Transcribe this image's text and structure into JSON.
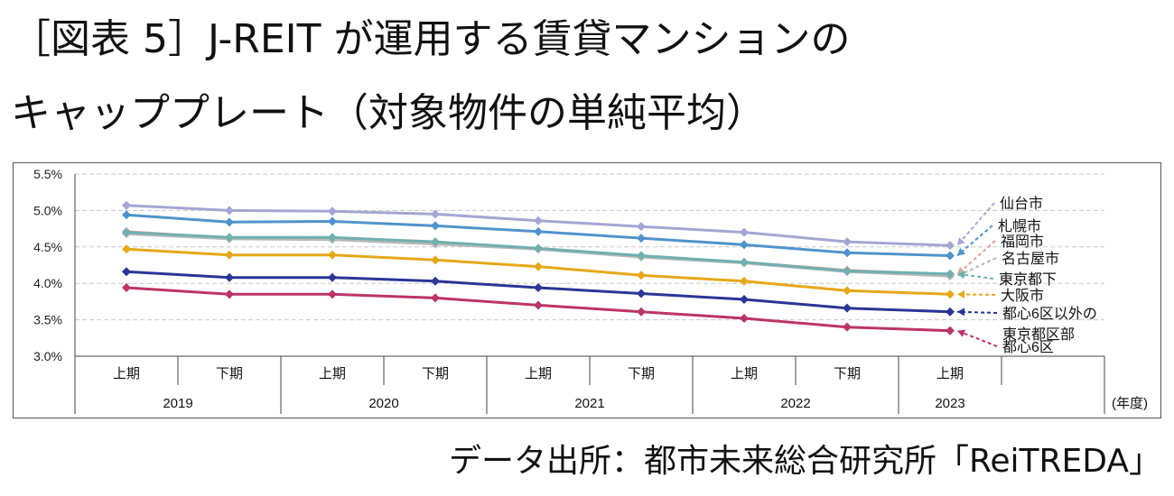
{
  "header": {
    "title_line1": "［図表 5］J-REIT が運用する賃貸マンションの",
    "title_line2": "キャッププレート（対象物件の単純平均）"
  },
  "footer": {
    "source": "データ出所：都市未来総合研究所「ReiTREDA」"
  },
  "chart_data": {
    "type": "line",
    "ylim": [
      3.0,
      5.5
    ],
    "yticks": [
      "3.0%",
      "3.5%",
      "4.0%",
      "4.5%",
      "5.0%",
      "5.5%"
    ],
    "grid": true,
    "periods": [
      "上期",
      "下期",
      "上期",
      "下期",
      "上期",
      "下期",
      "上期",
      "下期",
      "上期"
    ],
    "years": [
      "2019",
      "2020",
      "2021",
      "2022",
      "2023"
    ],
    "x_unit": "(年度)",
    "series": [
      {
        "name": "仙台市",
        "color": "#a5a5d4",
        "values": [
          5.07,
          5.0,
          4.99,
          4.95,
          4.86,
          4.78,
          4.7,
          4.57,
          4.52
        ]
      },
      {
        "name": "札幌市",
        "color": "#4f93cc",
        "values": [
          4.94,
          4.84,
          4.85,
          4.79,
          4.71,
          4.62,
          4.53,
          4.42,
          4.38
        ]
      },
      {
        "name": "福岡市",
        "color": "#e0a09c",
        "values": [
          4.71,
          4.62,
          4.62,
          4.56,
          4.47,
          4.37,
          4.29,
          4.18,
          4.12
        ]
      },
      {
        "name": "名古屋市",
        "color": "#b8b8b8",
        "values": [
          4.68,
          4.61,
          4.6,
          4.54,
          4.47,
          4.36,
          4.28,
          4.16,
          4.1
        ]
      },
      {
        "name": "東京都下",
        "color": "#6fb0ae",
        "values": [
          4.7,
          4.63,
          4.63,
          4.57,
          4.48,
          4.38,
          4.29,
          4.17,
          4.13
        ]
      },
      {
        "name": "大阪市",
        "color": "#e6a818",
        "values": [
          4.47,
          4.39,
          4.39,
          4.32,
          4.23,
          4.11,
          4.03,
          3.9,
          3.85
        ]
      },
      {
        "name": "都心6区以外の東京都区部",
        "color": "#2a3596",
        "values": [
          4.16,
          4.08,
          4.08,
          4.03,
          3.94,
          3.86,
          3.78,
          3.66,
          3.61
        ]
      },
      {
        "name": "都心6区",
        "color": "#bb3467",
        "values": [
          3.94,
          3.85,
          3.85,
          3.8,
          3.7,
          3.61,
          3.52,
          3.4,
          3.35
        ]
      }
    ],
    "labels": [
      {
        "text": "仙台市",
        "color": "#a5a5d4"
      },
      {
        "text": "札幌市",
        "color": "#4f93cc"
      },
      {
        "text": "福岡市",
        "color": "#e0a09c"
      },
      {
        "text": "名古屋市",
        "color": "#b8b8b8"
      },
      {
        "text": "東京都下",
        "color": "#6fb0ae"
      },
      {
        "text": "大阪市",
        "color": "#e6a818"
      },
      {
        "text": "都心6区以外の",
        "color": "#2a3596"
      },
      {
        "text": "東京都区部",
        "color": "#2a3596"
      },
      {
        "text": "都心6区",
        "color": "#bb3467"
      }
    ]
  }
}
